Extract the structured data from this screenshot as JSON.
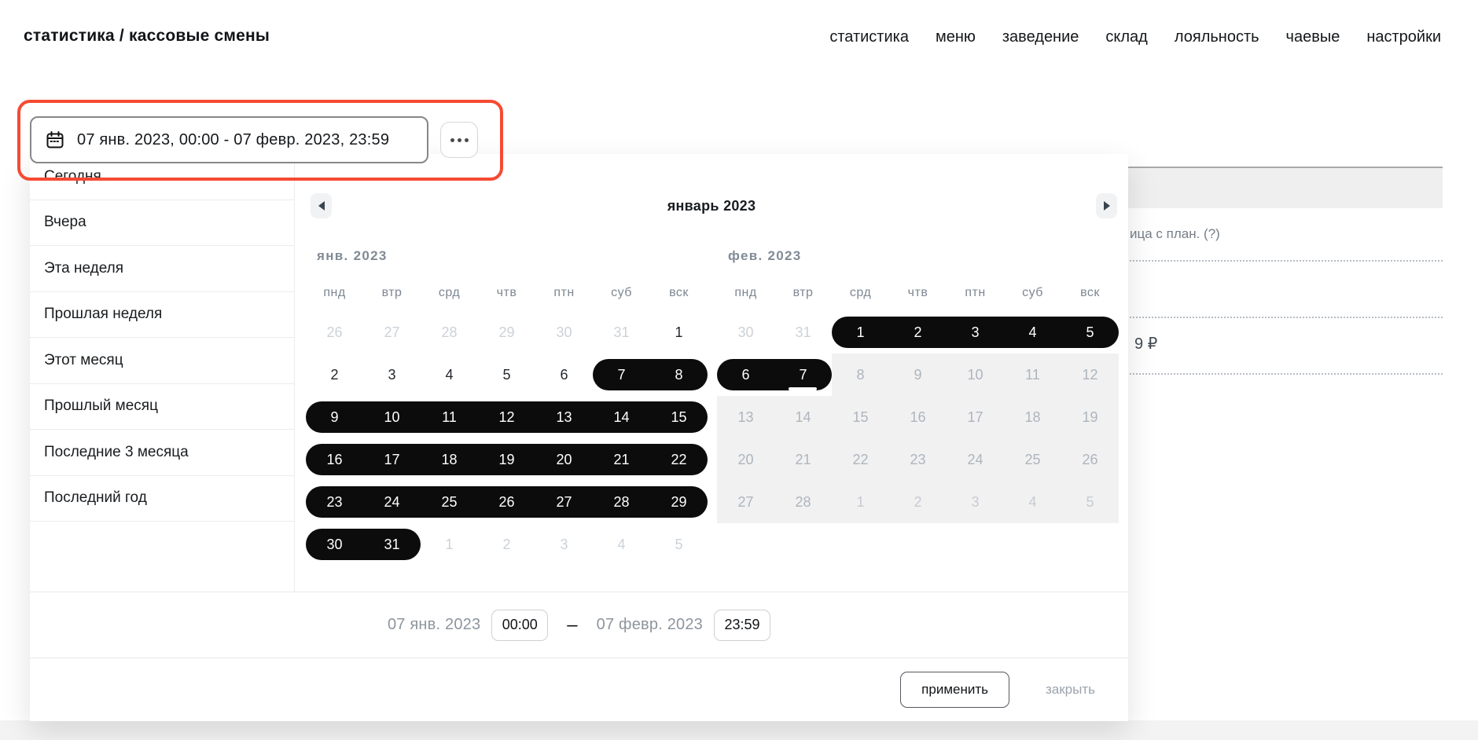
{
  "header": {
    "title": "статистика / кассовые смены",
    "nav": [
      "статистика",
      "меню",
      "заведение",
      "склад",
      "лояльность",
      "чаевые",
      "настройки"
    ]
  },
  "icons": {
    "date_field": "calendar-icon",
    "more_button": "ellipsis-icon",
    "prev": "chevron-left-icon",
    "next": "chevron-right-icon"
  },
  "picker": {
    "date_field": {
      "value": "07 янв. 2023, 00:00 - 07 февр. 2023, 23:59"
    },
    "presets": [
      "Сегодня",
      "Вчера",
      "Эта неделя",
      "Прошлая неделя",
      "Этот месяц",
      "Прошлый месяц",
      "Последние 3 месяца",
      "Последний год"
    ],
    "calendar": {
      "title": "январь 2023",
      "weekdays": [
        "пнд",
        "втр",
        "срд",
        "чтв",
        "птн",
        "суб",
        "вск"
      ],
      "months": [
        {
          "label": "янв. 2023",
          "rows": [
            [
              [
                "26",
                "m"
              ],
              [
                "27",
                "m"
              ],
              [
                "28",
                "m"
              ],
              [
                "29",
                "m"
              ],
              [
                "30",
                "m"
              ],
              [
                "31",
                "m"
              ],
              [
                "1",
                "n"
              ]
            ],
            [
              [
                "2",
                "n"
              ],
              [
                "3",
                "n"
              ],
              [
                "4",
                "n"
              ],
              [
                "5",
                "n"
              ],
              [
                "6",
                "n"
              ],
              [
                "7",
                "s"
              ],
              [
                "8",
                "s"
              ]
            ],
            [
              [
                "9",
                "s"
              ],
              [
                "10",
                "s"
              ],
              [
                "11",
                "s"
              ],
              [
                "12",
                "s"
              ],
              [
                "13",
                "s"
              ],
              [
                "14",
                "s"
              ],
              [
                "15",
                "s"
              ]
            ],
            [
              [
                "16",
                "s"
              ],
              [
                "17",
                "s"
              ],
              [
                "18",
                "s"
              ],
              [
                "19",
                "s"
              ],
              [
                "20",
                "s"
              ],
              [
                "21",
                "s"
              ],
              [
                "22",
                "s"
              ]
            ],
            [
              [
                "23",
                "s"
              ],
              [
                "24",
                "s"
              ],
              [
                "25",
                "s"
              ],
              [
                "26",
                "s"
              ],
              [
                "27",
                "s"
              ],
              [
                "28",
                "s"
              ],
              [
                "29",
                "s"
              ]
            ],
            [
              [
                "30",
                "s"
              ],
              [
                "31",
                "s"
              ],
              [
                "1",
                "m"
              ],
              [
                "2",
                "m"
              ],
              [
                "3",
                "m"
              ],
              [
                "4",
                "m"
              ],
              [
                "5",
                "m"
              ]
            ]
          ]
        },
        {
          "label": "фев. 2023",
          "rows": [
            [
              [
                "30",
                "m"
              ],
              [
                "31",
                "m"
              ],
              [
                "1",
                "s"
              ],
              [
                "2",
                "s"
              ],
              [
                "3",
                "s"
              ],
              [
                "4",
                "s"
              ],
              [
                "5",
                "s"
              ]
            ],
            [
              [
                "6",
                "s"
              ],
              [
                "7",
                "se"
              ],
              [
                "8",
                "d"
              ],
              [
                "9",
                "d"
              ],
              [
                "10",
                "d"
              ],
              [
                "11",
                "d"
              ],
              [
                "12",
                "d"
              ]
            ],
            [
              [
                "13",
                "d"
              ],
              [
                "14",
                "d"
              ],
              [
                "15",
                "d"
              ],
              [
                "16",
                "d"
              ],
              [
                "17",
                "d"
              ],
              [
                "18",
                "d"
              ],
              [
                "19",
                "d"
              ]
            ],
            [
              [
                "20",
                "d"
              ],
              [
                "21",
                "d"
              ],
              [
                "22",
                "d"
              ],
              [
                "23",
                "d"
              ],
              [
                "24",
                "d"
              ],
              [
                "25",
                "d"
              ],
              [
                "26",
                "d"
              ]
            ],
            [
              [
                "27",
                "d"
              ],
              [
                "28",
                "d"
              ],
              [
                "1",
                "dm"
              ],
              [
                "2",
                "dm"
              ],
              [
                "3",
                "dm"
              ],
              [
                "4",
                "dm"
              ],
              [
                "5",
                "dm"
              ]
            ]
          ]
        }
      ]
    },
    "footer": {
      "start_date": "07 янв. 2023",
      "start_time": "00:00",
      "dash": "–",
      "end_date": "07 февр. 2023",
      "end_time": "23:59",
      "apply_label": "применить",
      "close_label": "закрыть"
    }
  },
  "background": {
    "partial_text": "ица с план. (?)",
    "partial_amount": "9 ₽"
  },
  "colors": {
    "annotation_red": "#f64a33",
    "selection_black": "#0c0c0c",
    "muted_gray": "#ccd2d8",
    "disabled_bg": "#f1f1f2"
  }
}
